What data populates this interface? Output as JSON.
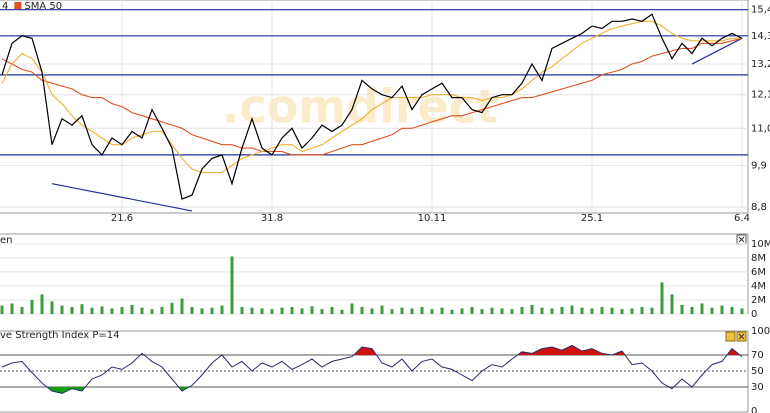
{
  "chart_data": [
    {
      "type": "line",
      "log_scale": true,
      "grid": true,
      "watermark": ".comdirect",
      "categories": [
        null,
        null,
        null,
        null,
        null,
        null,
        null,
        null,
        null,
        null,
        null,
        null,
        "21.6",
        null,
        null,
        null,
        null,
        null,
        null,
        null,
        null,
        null,
        null,
        null,
        null,
        null,
        null,
        "31.8",
        null,
        null,
        null,
        null,
        null,
        null,
        null,
        null,
        null,
        null,
        null,
        null,
        null,
        null,
        null,
        "10.11",
        null,
        null,
        null,
        null,
        null,
        null,
        null,
        null,
        null,
        null,
        null,
        null,
        null,
        null,
        null,
        "25.1",
        null,
        null,
        null,
        null,
        null,
        null,
        null,
        null,
        null,
        null,
        null,
        null,
        null,
        null,
        "6.4"
      ],
      "series": [
        {
          "color": "#000000",
          "values": [
            12.8,
            14.0,
            14.3,
            14.2,
            12.9,
            10.5,
            11.3,
            11.1,
            11.4,
            10.5,
            10.2,
            10.7,
            10.5,
            10.9,
            10.7,
            11.6,
            11.0,
            10.4,
            9.0,
            9.1,
            9.8,
            10.1,
            10.2,
            9.4,
            10.4,
            11.3,
            10.4,
            10.2,
            10.7,
            11.0,
            10.4,
            10.7,
            11.1,
            10.9,
            11.1,
            11.6,
            12.6,
            12.3,
            12.1,
            12.0,
            12.4,
            11.6,
            12.1,
            12.3,
            12.5,
            12.0,
            12.0,
            11.6,
            11.5,
            12.0,
            12.1,
            12.1,
            12.5,
            13.2,
            12.6,
            13.8,
            14.0,
            14.2,
            14.4,
            14.7,
            14.6,
            14.9,
            14.9,
            15.0,
            14.9,
            15.2,
            14.2,
            13.4,
            14.0,
            13.6,
            14.2,
            13.9,
            14.2,
            14.4,
            14.2
          ]
        },
        {
          "name": "4",
          "color": "#f0b030",
          "values": [
            12.5,
            13.2,
            13.6,
            13.4,
            12.9,
            12.1,
            11.8,
            11.4,
            11.1,
            10.9,
            10.7,
            10.5,
            10.5,
            10.7,
            10.8,
            10.9,
            10.9,
            10.5,
            10.1,
            9.8,
            9.7,
            9.7,
            9.7,
            9.9,
            10.1,
            10.2,
            10.3,
            10.4,
            10.5,
            10.5,
            10.3,
            10.4,
            10.5,
            10.7,
            10.9,
            11.1,
            11.3,
            11.6,
            11.8,
            12.0,
            12.0,
            12.0,
            12.0,
            12.1,
            12.1,
            12.1,
            12.0,
            12.0,
            11.9,
            12.0,
            12.0,
            12.1,
            12.3,
            12.6,
            12.9,
            13.1,
            13.4,
            13.7,
            14.0,
            14.2,
            14.4,
            14.6,
            14.7,
            14.8,
            14.9,
            14.9,
            14.7,
            14.4,
            14.2,
            14.1,
            14.1,
            14.1,
            14.1,
            14.2,
            14.2
          ]
        },
        {
          "name": "SMA 50",
          "color": "#e05020",
          "values": [
            13.4,
            13.2,
            13.0,
            12.9,
            12.6,
            12.5,
            12.4,
            12.3,
            12.1,
            12.0,
            12.0,
            11.8,
            11.7,
            11.5,
            11.4,
            11.3,
            11.2,
            11.1,
            11.0,
            10.8,
            10.7,
            10.6,
            10.5,
            10.5,
            10.4,
            10.4,
            10.3,
            10.3,
            10.3,
            10.2,
            10.2,
            10.2,
            10.2,
            10.3,
            10.4,
            10.5,
            10.5,
            10.6,
            10.7,
            10.8,
            11.0,
            11.0,
            11.1,
            11.2,
            11.3,
            11.4,
            11.4,
            11.5,
            11.6,
            11.7,
            11.8,
            11.9,
            12.0,
            12.0,
            12.1,
            12.2,
            12.3,
            12.4,
            12.5,
            12.6,
            12.8,
            12.9,
            13.0,
            13.2,
            13.3,
            13.5,
            13.6,
            13.7,
            13.8,
            13.8,
            14.0,
            14.0,
            14.0,
            14.1,
            14.2
          ]
        }
      ],
      "hlines": [
        15.4,
        14.3,
        12.8,
        10.2
      ],
      "hline_color": "#2030a0",
      "trendlines": [
        {
          "x": [
            5,
            19
          ],
          "y": [
            9.4,
            8.7
          ]
        },
        {
          "x": [
            69,
            74
          ],
          "y": [
            13.2,
            14.2
          ]
        }
      ],
      "ylim": [
        8.65,
        15.83
      ],
      "yticks": [
        {
          "value": 15.4,
          "label": "15,4"
        },
        {
          "value": 14.3,
          "label": "14,3"
        },
        {
          "value": 13.2,
          "label": "13,2"
        },
        {
          "value": 12.1,
          "label": "12,1"
        },
        {
          "value": 11.0,
          "label": "11,0"
        },
        {
          "value": 9.9,
          "label": "9,9"
        },
        {
          "value": 8.8,
          "label": "8,8"
        }
      ]
    },
    {
      "type": "bar",
      "title": "en",
      "color": "#3c9c3c",
      "grid": true,
      "values": [
        1.2,
        1.5,
        1.0,
        2.0,
        2.8,
        1.8,
        1.2,
        1.0,
        1.4,
        0.9,
        1.1,
        0.8,
        1.0,
        1.3,
        0.9,
        0.7,
        1.0,
        1.6,
        2.2,
        1.0,
        0.8,
        0.9,
        1.2,
        8.2,
        1.0,
        0.9,
        0.8,
        0.7,
        0.9,
        1.0,
        0.8,
        1.1,
        0.7,
        1.0,
        0.6,
        1.5,
        1.0,
        0.8,
        1.2,
        0.7,
        0.9,
        0.8,
        1.0,
        0.7,
        0.9,
        0.6,
        0.8,
        1.0,
        0.7,
        0.9,
        0.8,
        0.7,
        1.0,
        1.3,
        0.9,
        0.8,
        1.0,
        1.2,
        0.9,
        0.8,
        1.0,
        0.9,
        0.7,
        0.8,
        1.0,
        0.9,
        4.5,
        2.8,
        1.3,
        1.0,
        1.5,
        0.9,
        1.2,
        1.0,
        0.8
      ],
      "ylim": [
        0,
        11.4
      ],
      "yticks": [
        {
          "value": 10,
          "label": "10M"
        },
        {
          "value": 8,
          "label": "8M"
        },
        {
          "value": 6,
          "label": "6M"
        },
        {
          "value": 4,
          "label": "4M"
        },
        {
          "value": 2,
          "label": "2M"
        },
        0
      ]
    },
    {
      "type": "rsi",
      "title": "ve Strength Index P=14",
      "color": "#2a2a6a",
      "upper": 70,
      "middle": 50,
      "lower": 30,
      "upper_color": "#d01010",
      "lower_color": "#10a010",
      "values": [
        55,
        60,
        62,
        48,
        35,
        25,
        22,
        28,
        25,
        40,
        45,
        55,
        52,
        60,
        72,
        62,
        55,
        40,
        25,
        32,
        45,
        60,
        70,
        55,
        62,
        50,
        60,
        55,
        62,
        52,
        58,
        65,
        55,
        62,
        65,
        68,
        80,
        78,
        60,
        55,
        65,
        50,
        62,
        65,
        55,
        52,
        45,
        38,
        50,
        58,
        55,
        65,
        74,
        72,
        78,
        80,
        76,
        82,
        75,
        78,
        72,
        70,
        75,
        58,
        60,
        50,
        35,
        28,
        40,
        30,
        45,
        58,
        62,
        78,
        68
      ],
      "ylim": [
        0,
        100
      ],
      "yticks": [
        100,
        70,
        50,
        30,
        0
      ]
    }
  ]
}
